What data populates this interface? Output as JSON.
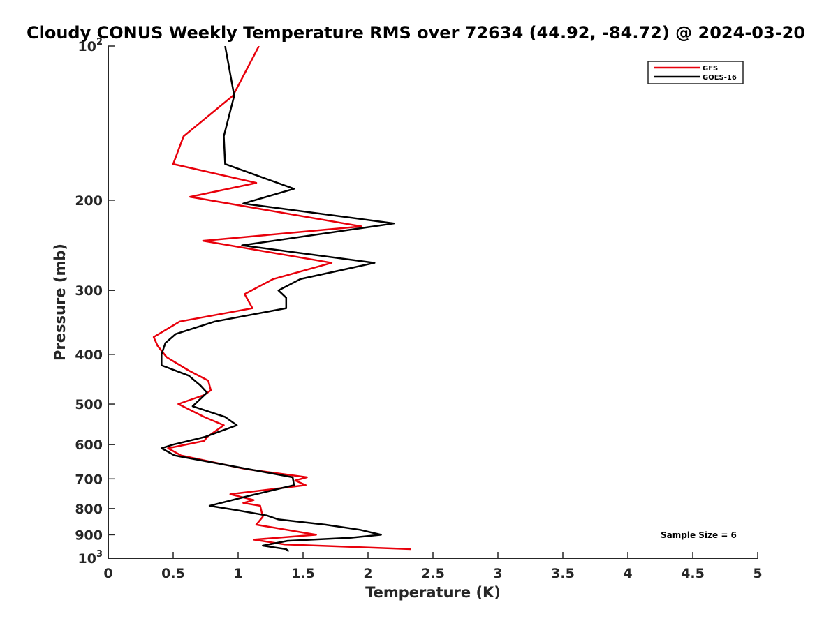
{
  "chart_data": {
    "type": "line",
    "title": "Cloudy CONUS Weekly Temperature RMS over 72634 (44.92, -84.72) @ 2024-03-20",
    "xlabel": "Temperature (K)",
    "ylabel": "Pressure (mb)",
    "xlim": [
      0,
      5
    ],
    "ylim": [
      100,
      1000
    ],
    "y_scale": "log",
    "y_reversed": true,
    "x_ticks": [
      "0",
      "0.5",
      "1",
      "1.5",
      "2",
      "2.5",
      "3",
      "3.5",
      "4",
      "4.5",
      "5"
    ],
    "y_ticks": [
      {
        "value": 100,
        "base": "10",
        "exp": "2"
      },
      {
        "value": 200,
        "label": "200"
      },
      {
        "value": 300,
        "label": "300"
      },
      {
        "value": 400,
        "label": "400"
      },
      {
        "value": 500,
        "label": "500"
      },
      {
        "value": 600,
        "label": "600"
      },
      {
        "value": 700,
        "label": "700"
      },
      {
        "value": 800,
        "label": "800"
      },
      {
        "value": 900,
        "label": "900"
      },
      {
        "value": 1000,
        "base": "10",
        "exp": "3"
      }
    ],
    "grid": false,
    "legend_position": "top-right",
    "annotation": "Sample Size = 6",
    "series": [
      {
        "name": "GFS",
        "color": "#e8000b",
        "points": [
          [
            1.16,
            100
          ],
          [
            0.96,
            125
          ],
          [
            0.58,
            150
          ],
          [
            0.5,
            170
          ],
          [
            1.14,
            185
          ],
          [
            0.63,
            197
          ],
          [
            1.95,
            225
          ],
          [
            0.73,
            240
          ],
          [
            1.72,
            265
          ],
          [
            1.27,
            285
          ],
          [
            1.05,
            305
          ],
          [
            1.11,
            325
          ],
          [
            0.55,
            345
          ],
          [
            0.35,
            370
          ],
          [
            0.38,
            385
          ],
          [
            0.45,
            405
          ],
          [
            0.62,
            430
          ],
          [
            0.77,
            450
          ],
          [
            0.79,
            470
          ],
          [
            0.74,
            480
          ],
          [
            0.54,
            500
          ],
          [
            0.74,
            530
          ],
          [
            0.89,
            550
          ],
          [
            0.76,
            580
          ],
          [
            0.74,
            590
          ],
          [
            0.46,
            610
          ],
          [
            0.56,
            630
          ],
          [
            1.06,
            670
          ],
          [
            1.53,
            695
          ],
          [
            1.44,
            705
          ],
          [
            1.52,
            720
          ],
          [
            0.94,
            750
          ],
          [
            1.12,
            770
          ],
          [
            1.04,
            780
          ],
          [
            1.17,
            790
          ],
          [
            1.19,
            830
          ],
          [
            1.14,
            860
          ],
          [
            1.6,
            900
          ],
          [
            1.12,
            920
          ],
          [
            1.36,
            940
          ],
          [
            2.33,
            960
          ]
        ]
      },
      {
        "name": "GOES-16",
        "color": "#000000",
        "points": [
          [
            0.9,
            100
          ],
          [
            0.97,
            125
          ],
          [
            0.89,
            150
          ],
          [
            0.9,
            170
          ],
          [
            1.43,
            190
          ],
          [
            1.04,
            203
          ],
          [
            2.2,
            222
          ],
          [
            1.03,
            245
          ],
          [
            2.05,
            265
          ],
          [
            1.48,
            285
          ],
          [
            1.31,
            300
          ],
          [
            1.37,
            310
          ],
          [
            1.37,
            325
          ],
          [
            0.82,
            345
          ],
          [
            0.52,
            365
          ],
          [
            0.44,
            380
          ],
          [
            0.41,
            400
          ],
          [
            0.41,
            420
          ],
          [
            0.62,
            440
          ],
          [
            0.71,
            460
          ],
          [
            0.76,
            475
          ],
          [
            0.65,
            505
          ],
          [
            0.9,
            530
          ],
          [
            0.99,
            550
          ],
          [
            0.74,
            580
          ],
          [
            0.5,
            600
          ],
          [
            0.41,
            610
          ],
          [
            0.51,
            630
          ],
          [
            1.22,
            680
          ],
          [
            1.42,
            695
          ],
          [
            1.43,
            720
          ],
          [
            1.09,
            755
          ],
          [
            0.78,
            790
          ],
          [
            0.98,
            805
          ],
          [
            1.22,
            825
          ],
          [
            1.31,
            840
          ],
          [
            1.67,
            860
          ],
          [
            1.94,
            880
          ],
          [
            2.1,
            900
          ],
          [
            1.87,
            912
          ],
          [
            1.38,
            925
          ],
          [
            1.19,
            945
          ],
          [
            1.37,
            960
          ],
          [
            1.39,
            970
          ]
        ]
      }
    ]
  }
}
